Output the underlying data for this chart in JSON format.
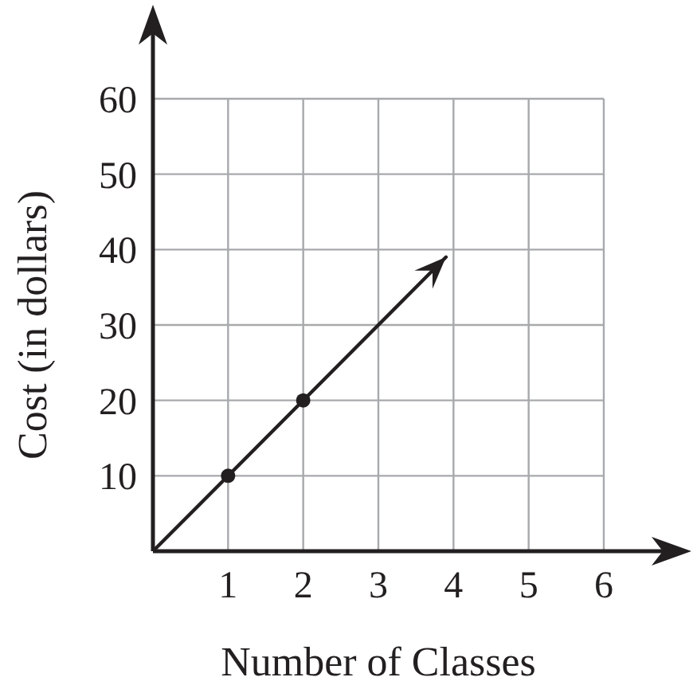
{
  "chart_data": {
    "type": "line",
    "xlabel": "Number of Classes",
    "ylabel": "Cost (in dollars)",
    "series": [
      {
        "type": "line",
        "color": "#231f20",
        "x": [
          0,
          3.9
        ],
        "values": [
          0,
          39
        ],
        "marker": "none"
      },
      {
        "type": "scatter",
        "color": "#231f20",
        "x": [
          1,
          2
        ],
        "values": [
          10,
          20
        ],
        "marker": "circle"
      }
    ],
    "xlim": [
      0,
      6
    ],
    "xticks": [
      1,
      2,
      3,
      4,
      5,
      6
    ],
    "ylim": [
      0,
      60
    ],
    "yticks": [
      10,
      20,
      30,
      40,
      50,
      60
    ],
    "grid": true
  }
}
